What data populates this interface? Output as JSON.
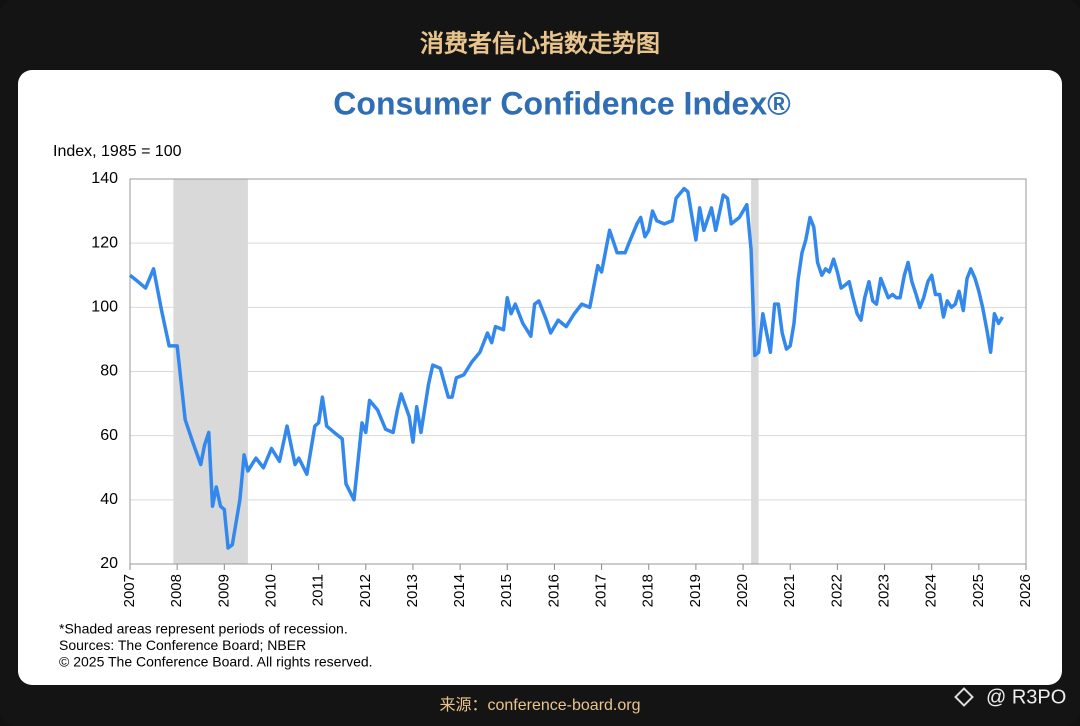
{
  "header": "消费者信心指数走势图",
  "source": "来源：conference-board.org",
  "watermark": "@ R3PO",
  "chart_data": {
    "type": "line",
    "title": "Consumer Confidence Index®",
    "y_label": "Index, 1985 = 100",
    "notes": [
      "*Shaded areas represent periods of recession.",
      "Sources: The Conference Board;  NBER",
      "© 2025 The Conference Board. All rights reserved."
    ],
    "xlim": [
      2007,
      2026
    ],
    "xticks": [
      2007,
      2008,
      2009,
      2010,
      2011,
      2012,
      2013,
      2014,
      2015,
      2016,
      2017,
      2018,
      2019,
      2020,
      2021,
      2022,
      2023,
      2024,
      2025,
      2026
    ],
    "ylim": [
      20,
      140
    ],
    "yticks": [
      20,
      40,
      60,
      80,
      100,
      120,
      140
    ],
    "grid": true,
    "shaded_periods": [
      [
        2007.92,
        2009.5
      ],
      [
        2020.17,
        2020.33
      ]
    ],
    "shade_color": "#d9d9d9",
    "series": [
      {
        "name": "Consumer Confidence Index",
        "color": "#3388ee",
        "x": [
          2007.0,
          2007.17,
          2007.33,
          2007.5,
          2007.67,
          2007.83,
          2008.0,
          2008.17,
          2008.33,
          2008.5,
          2008.58,
          2008.67,
          2008.75,
          2008.83,
          2008.92,
          2009.0,
          2009.08,
          2009.17,
          2009.33,
          2009.42,
          2009.5,
          2009.67,
          2009.83,
          2010.0,
          2010.17,
          2010.33,
          2010.5,
          2010.58,
          2010.75,
          2010.92,
          2011.0,
          2011.08,
          2011.17,
          2011.33,
          2011.5,
          2011.58,
          2011.75,
          2011.92,
          2012.0,
          2012.08,
          2012.25,
          2012.42,
          2012.58,
          2012.67,
          2012.75,
          2012.92,
          2013.0,
          2013.08,
          2013.17,
          2013.33,
          2013.42,
          2013.58,
          2013.75,
          2013.83,
          2013.92,
          2014.08,
          2014.25,
          2014.42,
          2014.58,
          2014.67,
          2014.75,
          2014.92,
          2015.0,
          2015.08,
          2015.17,
          2015.33,
          2015.5,
          2015.58,
          2015.67,
          2015.83,
          2015.92,
          2016.08,
          2016.25,
          2016.42,
          2016.58,
          2016.75,
          2016.92,
          2017.0,
          2017.17,
          2017.33,
          2017.5,
          2017.58,
          2017.75,
          2017.83,
          2017.92,
          2018.0,
          2018.08,
          2018.17,
          2018.33,
          2018.5,
          2018.58,
          2018.75,
          2018.83,
          2018.92,
          2019.0,
          2019.08,
          2019.17,
          2019.33,
          2019.42,
          2019.58,
          2019.67,
          2019.75,
          2019.92,
          2020.0,
          2020.08,
          2020.17,
          2020.25,
          2020.33,
          2020.42,
          2020.5,
          2020.58,
          2020.67,
          2020.75,
          2020.83,
          2020.92,
          2021.0,
          2021.08,
          2021.17,
          2021.25,
          2021.33,
          2021.42,
          2021.5,
          2021.58,
          2021.67,
          2021.75,
          2021.83,
          2021.92,
          2022.0,
          2022.08,
          2022.17,
          2022.25,
          2022.33,
          2022.42,
          2022.5,
          2022.58,
          2022.67,
          2022.75,
          2022.83,
          2022.92,
          2023.0,
          2023.08,
          2023.17,
          2023.25,
          2023.33,
          2023.42,
          2023.5,
          2023.58,
          2023.67,
          2023.75,
          2023.83,
          2023.92,
          2024.0,
          2024.08,
          2024.17,
          2024.25,
          2024.33,
          2024.42,
          2024.5,
          2024.58,
          2024.67,
          2024.75,
          2024.83,
          2024.92,
          2025.0,
          2025.08,
          2025.17,
          2025.25,
          2025.33,
          2025.42,
          2025.5
        ],
        "values": [
          110,
          108,
          106,
          112,
          99,
          88,
          88,
          65,
          58,
          51,
          57,
          61,
          38,
          44,
          38,
          37,
          25,
          26,
          40,
          54,
          49,
          53,
          50,
          56,
          52,
          63,
          51,
          53,
          48,
          63,
          64,
          72,
          63,
          61,
          59,
          45,
          40,
          64,
          61,
          71,
          68,
          62,
          61,
          68,
          73,
          66,
          58,
          69,
          61,
          76,
          82,
          81,
          72,
          72,
          78,
          79,
          83,
          86,
          92,
          89,
          94,
          93,
          103,
          98,
          101,
          95,
          91,
          101,
          102,
          96,
          92,
          96,
          94,
          98,
          101,
          100,
          113,
          111,
          124,
          117,
          117,
          120,
          126,
          128,
          122,
          124,
          130,
          127,
          126,
          127,
          134,
          137,
          136,
          128,
          121,
          131,
          124,
          131,
          124,
          135,
          134,
          126,
          128,
          130,
          132,
          118,
          85,
          86,
          98,
          92,
          86,
          101,
          101,
          92,
          87,
          88,
          95,
          109,
          117,
          121,
          128,
          125,
          114,
          110,
          112,
          111,
          115,
          111,
          106,
          107,
          108,
          103,
          98,
          96,
          103,
          108,
          102,
          101,
          109,
          106,
          103,
          104,
          103,
          103,
          110,
          114,
          108,
          104,
          100,
          103,
          108,
          110,
          104,
          104,
          97,
          102,
          100,
          101,
          105,
          99,
          109,
          112,
          109,
          105,
          100,
          93,
          86,
          98,
          95,
          97
        ]
      }
    ]
  }
}
